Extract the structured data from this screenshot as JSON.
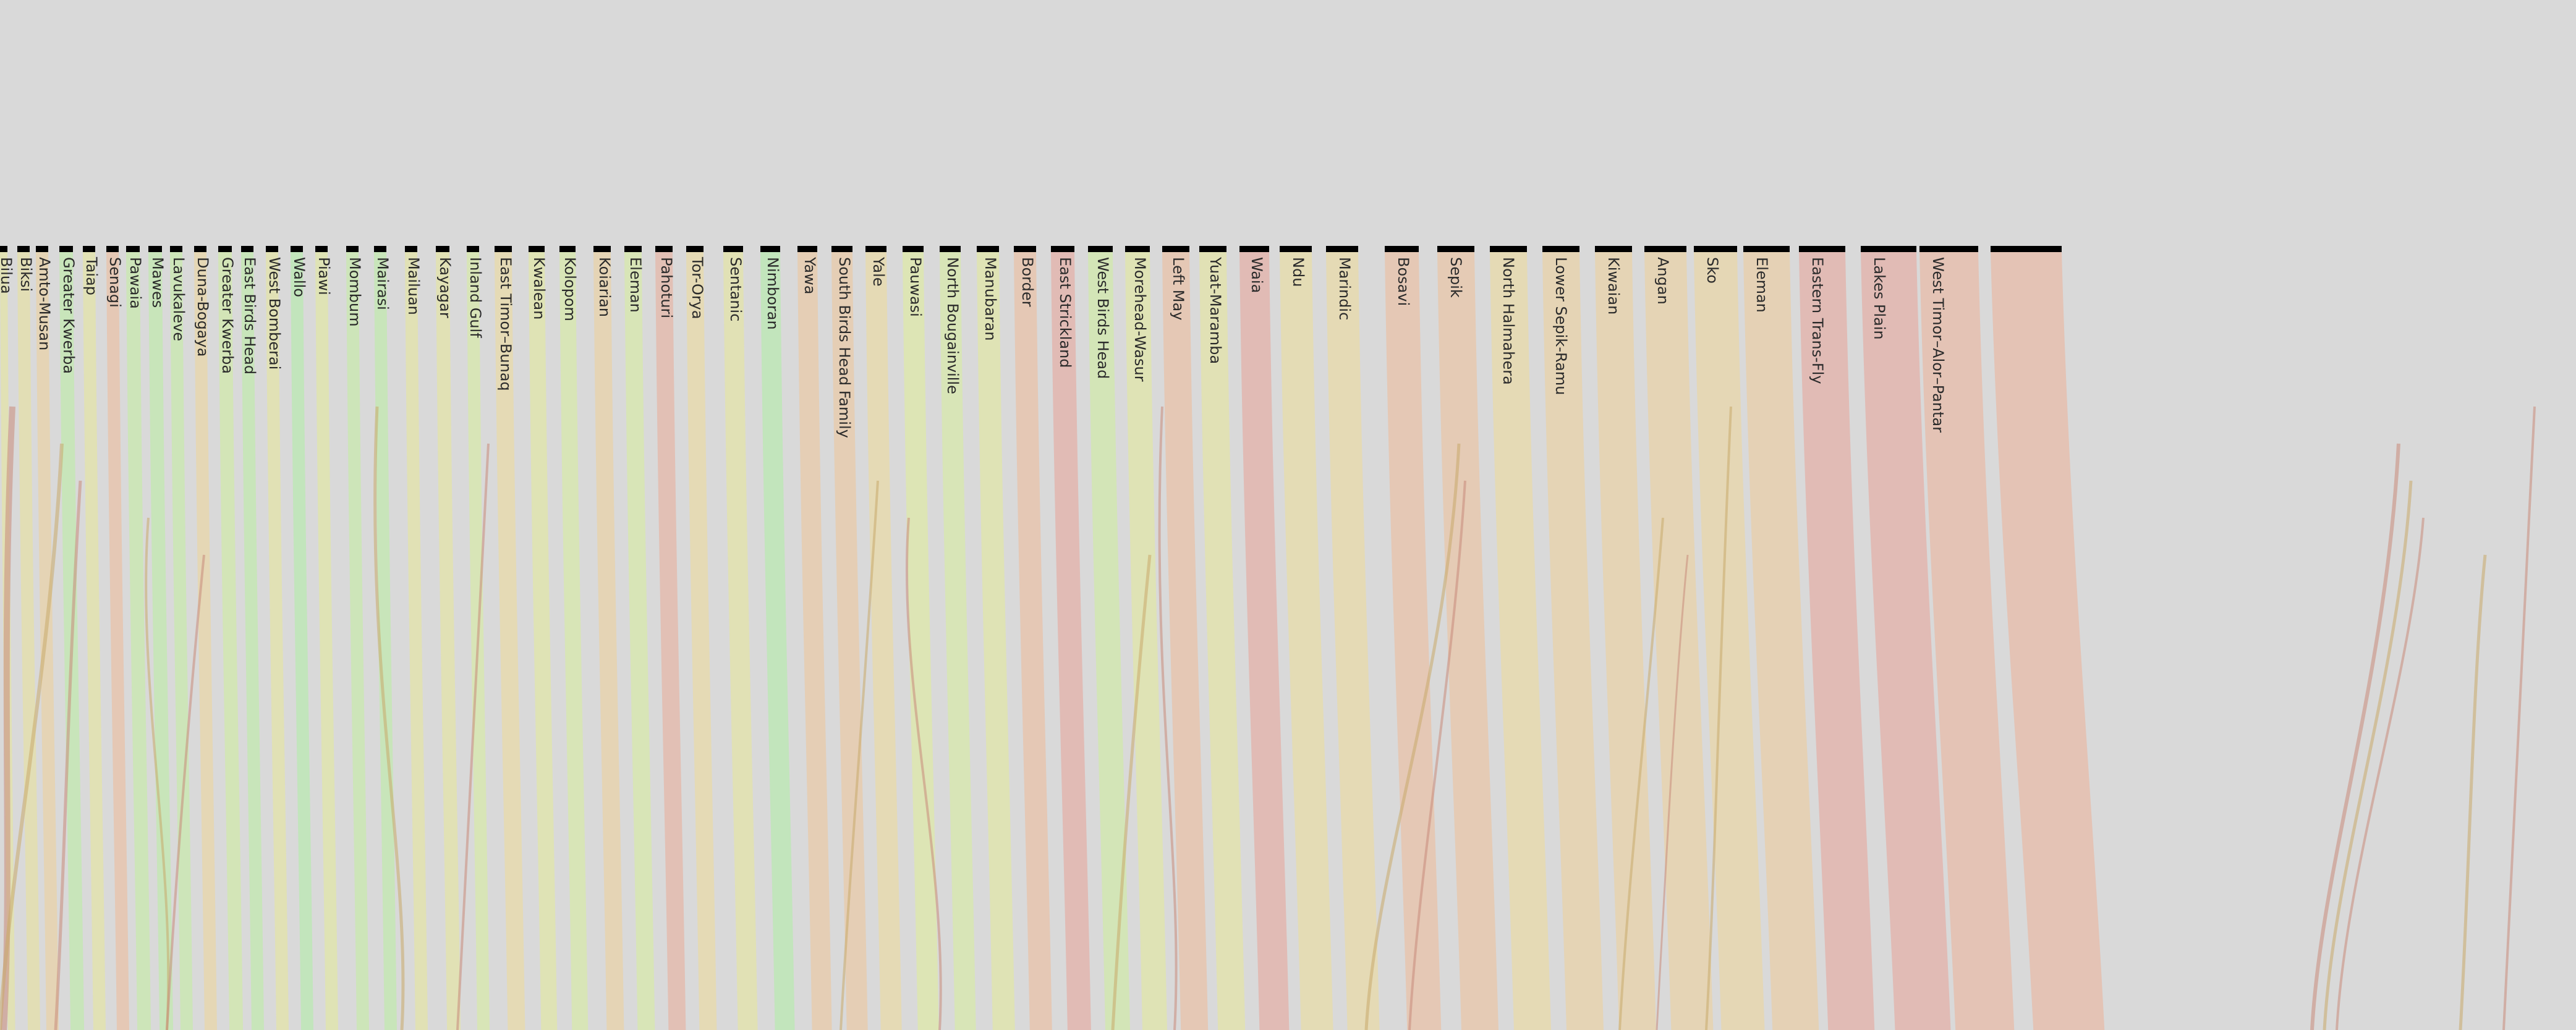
{
  "diagram": {
    "type": "flow",
    "colors": {
      "background": "#d9d9d9",
      "node_bar": "#000000",
      "label": "#2a2a2a",
      "scale": [
        "#bfe6b8",
        "#dde6b0",
        "#e6d9b0",
        "#e6c9b0",
        "#e0b3b0"
      ]
    },
    "families": [
      {
        "name": "Bilua",
        "tone": 0.35
      },
      {
        "name": "Biksi",
        "tone": 0.4
      },
      {
        "name": "Amto-Musan",
        "tone": 0.6
      },
      {
        "name": "Greater Kwerba",
        "tone": 0.05
      },
      {
        "name": "Taiap",
        "tone": 0.35
      },
      {
        "name": "Senagi",
        "tone": 0.8
      },
      {
        "name": "Pawaia",
        "tone": 0.1
      },
      {
        "name": "Mawes",
        "tone": 0.05
      },
      {
        "name": "Lavukaleve",
        "tone": 0.1
      },
      {
        "name": "Duna-Bogaya",
        "tone": 0.55
      },
      {
        "name": "Greater Kwerba",
        "tone": 0.15
      },
      {
        "name": "East Birds Head",
        "tone": 0.05
      },
      {
        "name": "West Bomberai",
        "tone": 0.35
      },
      {
        "name": "Wallo",
        "tone": 0.0
      },
      {
        "name": "Piawi",
        "tone": 0.3
      },
      {
        "name": "Mombum",
        "tone": 0.1
      },
      {
        "name": "Mairasi",
        "tone": 0.05
      },
      {
        "name": "Mailuan",
        "tone": 0.35
      },
      {
        "name": "Kayagar",
        "tone": 0.35
      },
      {
        "name": "Inland Gulf",
        "tone": 0.2
      },
      {
        "name": "East Timor–Bunaq",
        "tone": 0.5
      },
      {
        "name": "Kwalean",
        "tone": 0.3
      },
      {
        "name": "Kolopom",
        "tone": 0.2
      },
      {
        "name": "Koiarian",
        "tone": 0.6
      },
      {
        "name": "Eleman",
        "tone": 0.2
      },
      {
        "name": "Pahoturi",
        "tone": 0.9
      },
      {
        "name": "Tor-Orya",
        "tone": 0.5
      },
      {
        "name": "Sentanic",
        "tone": 0.35
      },
      {
        "name": "Nimboran",
        "tone": 0.0
      },
      {
        "name": "Yawa",
        "tone": 0.7
      },
      {
        "name": "South Birds Head Family",
        "tone": 0.7
      },
      {
        "name": "Yale",
        "tone": 0.5
      },
      {
        "name": "Pauwasi",
        "tone": 0.25
      },
      {
        "name": "North Bougainville",
        "tone": 0.2
      },
      {
        "name": "Manubaran",
        "tone": 0.3
      },
      {
        "name": "Border",
        "tone": 0.8
      },
      {
        "name": "East Strickland",
        "tone": 0.95
      },
      {
        "name": "West Birds Head",
        "tone": 0.15
      },
      {
        "name": "Morehead-Wasur",
        "tone": 0.3
      },
      {
        "name": "Left May",
        "tone": 0.8
      },
      {
        "name": "Yuat-Maramba",
        "tone": 0.35
      },
      {
        "name": "Waia",
        "tone": 0.95
      },
      {
        "name": "Ndu",
        "tone": 0.45
      },
      {
        "name": "Marindic",
        "tone": 0.5
      },
      {
        "name": "Bosavi",
        "tone": 0.8
      },
      {
        "name": "Sepik",
        "tone": 0.75
      },
      {
        "name": "North Halmahera",
        "tone": 0.5
      },
      {
        "name": "Lower Sepik-Ramu",
        "tone": 0.6
      },
      {
        "name": "Kiwaian",
        "tone": 0.6
      },
      {
        "name": "Angan",
        "tone": 0.6
      },
      {
        "name": "Sko",
        "tone": 0.55
      },
      {
        "name": "Eleman",
        "tone": 0.65
      },
      {
        "name": "Eastern Trans-Fly",
        "tone": 0.95
      },
      {
        "name": "Lakes Plain",
        "tone": 0.95
      },
      {
        "name": "West Timor–Alor–Pantar",
        "tone": 0.85
      },
      {
        "name": "",
        "tone": 0.85
      }
    ]
  }
}
